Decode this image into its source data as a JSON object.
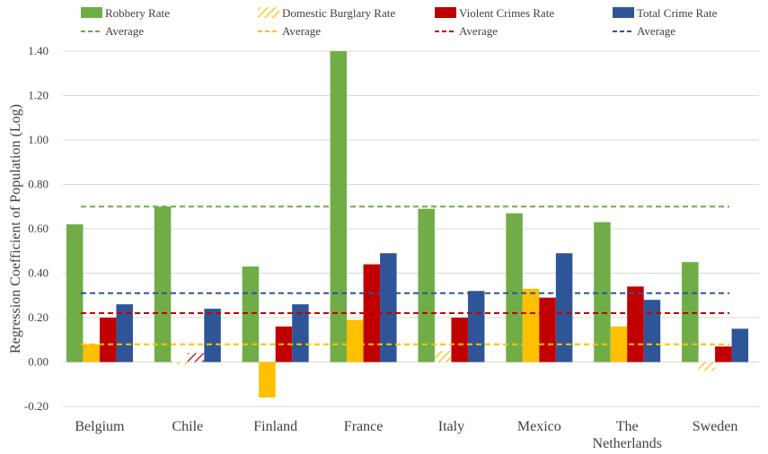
{
  "chart_data": {
    "type": "bar",
    "title": "",
    "xlabel": "",
    "ylabel": "Regression Coefficient of Population (Log)",
    "ylim": [
      -0.2,
      1.4
    ],
    "yticks": [
      "-0.20",
      "0.00",
      "0.20",
      "0.40",
      "0.60",
      "0.80",
      "1.00",
      "1.20",
      "1.40"
    ],
    "grid": true,
    "legend_position": "top",
    "categories": [
      "Belgium",
      "Chile",
      "Finland",
      "France",
      "Italy",
      "Mexico",
      "The Netherlands",
      "Sweden"
    ],
    "category_lines": [
      [
        "Belgium"
      ],
      [
        "Chile"
      ],
      [
        "Finland"
      ],
      [
        "France"
      ],
      [
        "Italy"
      ],
      [
        "Mexico"
      ],
      [
        "The",
        "Netherlands"
      ],
      [
        "Sweden"
      ]
    ],
    "series": [
      {
        "name": "Robbery Rate",
        "color": "#70AD47",
        "values": [
          0.62,
          0.7,
          0.43,
          1.4,
          0.69,
          0.67,
          0.63,
          0.45
        ],
        "hatched": [
          false,
          false,
          false,
          false,
          false,
          false,
          false,
          false
        ],
        "average_label": "Average",
        "average": 0.7
      },
      {
        "name": "Domestic Burglary Rate",
        "color": "#FFC000",
        "values": [
          0.08,
          -0.01,
          -0.16,
          0.19,
          0.05,
          0.33,
          0.16,
          -0.04
        ],
        "hatched": [
          false,
          true,
          false,
          false,
          true,
          false,
          false,
          true
        ],
        "average_label": "Average",
        "average": 0.08
      },
      {
        "name": "Violent Crimes Rate",
        "color": "#C00000",
        "values": [
          0.2,
          0.04,
          0.16,
          0.44,
          0.2,
          0.29,
          0.34,
          0.07
        ],
        "hatched": [
          false,
          true,
          false,
          false,
          false,
          false,
          false,
          false
        ],
        "average_label": "Average",
        "average": 0.22
      },
      {
        "name": "Total Crime Rate",
        "color": "#2E5597",
        "values": [
          0.26,
          0.24,
          0.26,
          0.49,
          0.32,
          0.49,
          0.28,
          0.15
        ],
        "hatched": [
          false,
          false,
          false,
          false,
          false,
          false,
          false,
          false
        ],
        "average_label": "Average",
        "average": 0.31
      }
    ]
  }
}
